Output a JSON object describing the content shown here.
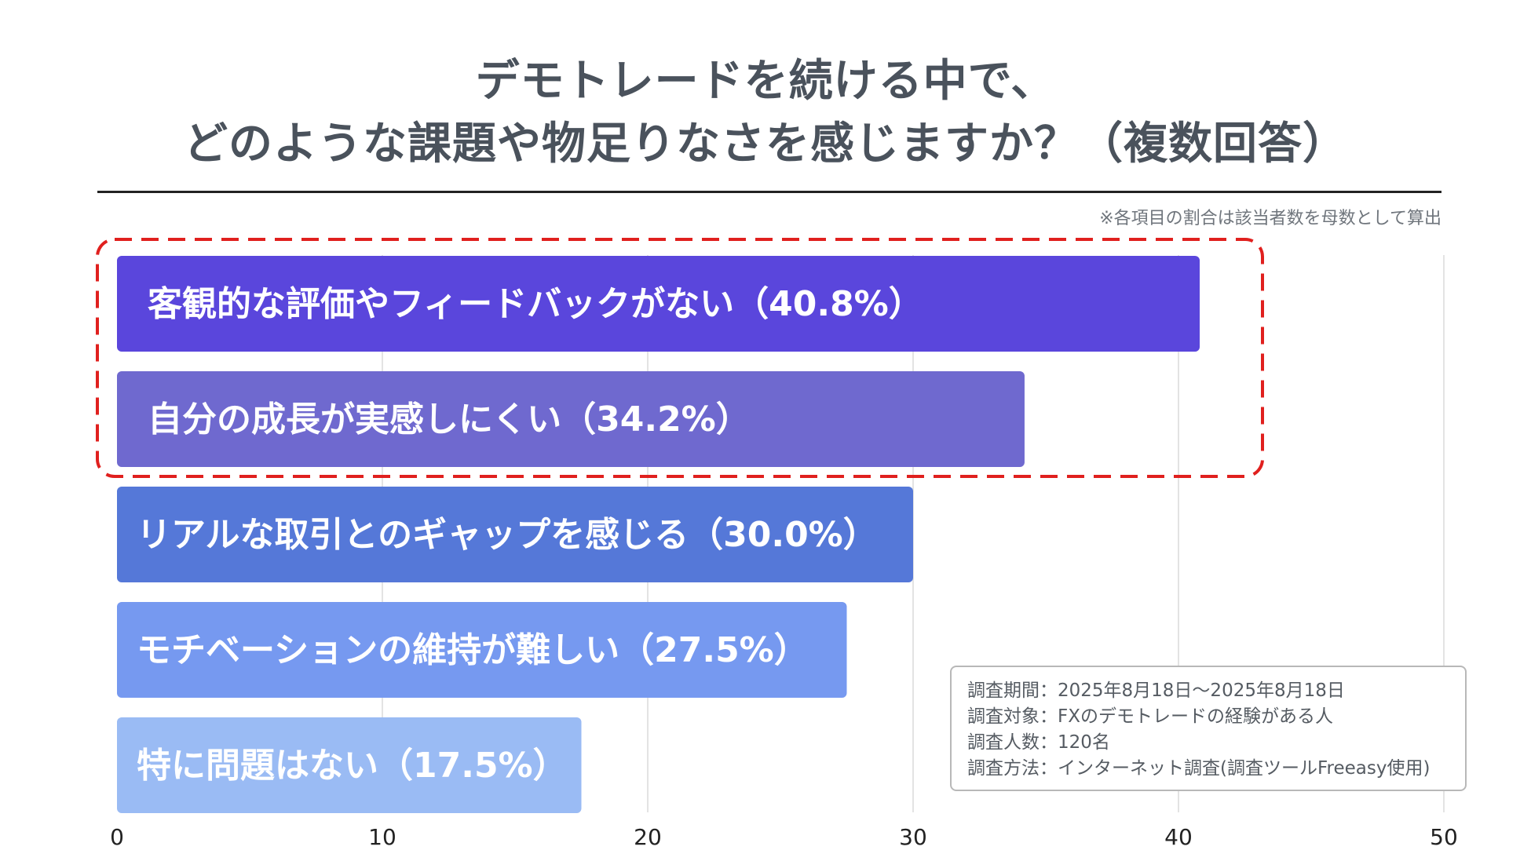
{
  "title": {
    "line1": "デモトレードを続ける中で、",
    "line2": "どのような課題や物足りなさを感じますか？（複数回答）"
  },
  "note": "※各項目の割合は該当者数を母数として算出",
  "chart_data": {
    "type": "bar",
    "orientation": "horizontal",
    "categories": [
      "客観的な評価やフィードバックがない",
      "自分の成長が実感しにくい",
      "リアルな取引とのギャップを感じる",
      "モチベーションの維持が難しい",
      "特に問題はない"
    ],
    "bar_labels": [
      "客観的な評価やフィードバックがない（40.8%）",
      "自分の成長が実感しにくい（34.2%）",
      "リアルな取引とのギャップを感じる（30.0%）",
      "モチベーションの維持が難しい（27.5%）",
      "特に問題はない（17.5%）"
    ],
    "values": [
      40.8,
      34.2,
      30.0,
      27.5,
      17.5
    ],
    "colors": [
      "#5a46dc",
      "#6f69cf",
      "#5578d8",
      "#7699f0",
      "#9abbf4"
    ],
    "xlim": [
      0,
      50
    ],
    "xticks": [
      "0",
      "10",
      "20",
      "30",
      "40",
      "50"
    ],
    "grid": true,
    "highlight": {
      "categories": [
        0,
        1
      ],
      "color": "#e0201e",
      "style": "dashed"
    }
  },
  "survey_info": {
    "period": "調査期間：2025年8月18日～2025年8月18日",
    "target": "調査対象：FXのデモトレードの経験がある人",
    "count": "調査人数：120名",
    "method": "調査方法：インターネット調査(調査ツールFreeasy使用)"
  }
}
